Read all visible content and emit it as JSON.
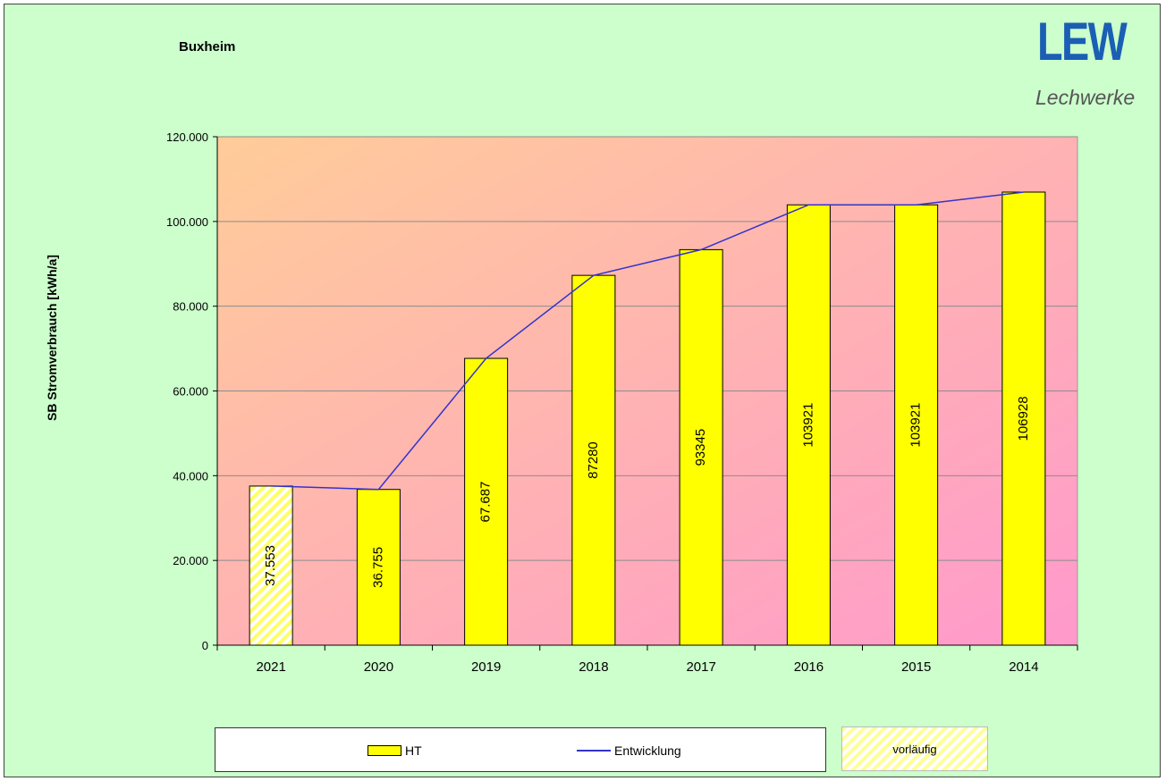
{
  "header": {
    "title": "Buxheim",
    "logo_main": "LEW",
    "logo_sub": "Lechwerke"
  },
  "legend": {
    "bar_label": "HT",
    "line_label": "Entwicklung",
    "preliminary_label": "vorläufig"
  },
  "colors": {
    "bar": "#ffff00",
    "line": "#3333cc",
    "background": "#ccffcc",
    "plot_gradient_start": "#ffcc99",
    "plot_gradient_end": "#ff99cc"
  },
  "chart_data": {
    "type": "bar",
    "ylabel": "SB Stromverbrauch [kWh/a]",
    "xlabel": "",
    "categories": [
      "2021",
      "2020",
      "2019",
      "2018",
      "2017",
      "2016",
      "2015",
      "2014"
    ],
    "series": [
      {
        "name": "HT",
        "values": [
          37553,
          36755,
          67687,
          87280,
          93345,
          103921,
          103921,
          106928
        ]
      },
      {
        "name": "Entwicklung",
        "values": [
          37553,
          36755,
          67687,
          87280,
          93345,
          103921,
          103921,
          106928
        ]
      }
    ],
    "value_labels": [
      "37.553",
      "36.755",
      "67.687",
      "87280",
      "93345",
      "103921",
      "103921",
      "106928"
    ],
    "preliminary": [
      true,
      false,
      false,
      false,
      false,
      false,
      false,
      false
    ],
    "ylim": [
      0,
      120000
    ],
    "yticks": [
      0,
      20000,
      40000,
      60000,
      80000,
      100000,
      120000
    ],
    "ytick_labels": [
      "0",
      "20.000",
      "40.000",
      "60.000",
      "80.000",
      "100.000",
      "120.000"
    ],
    "grid": true,
    "legend_position": "bottom"
  }
}
